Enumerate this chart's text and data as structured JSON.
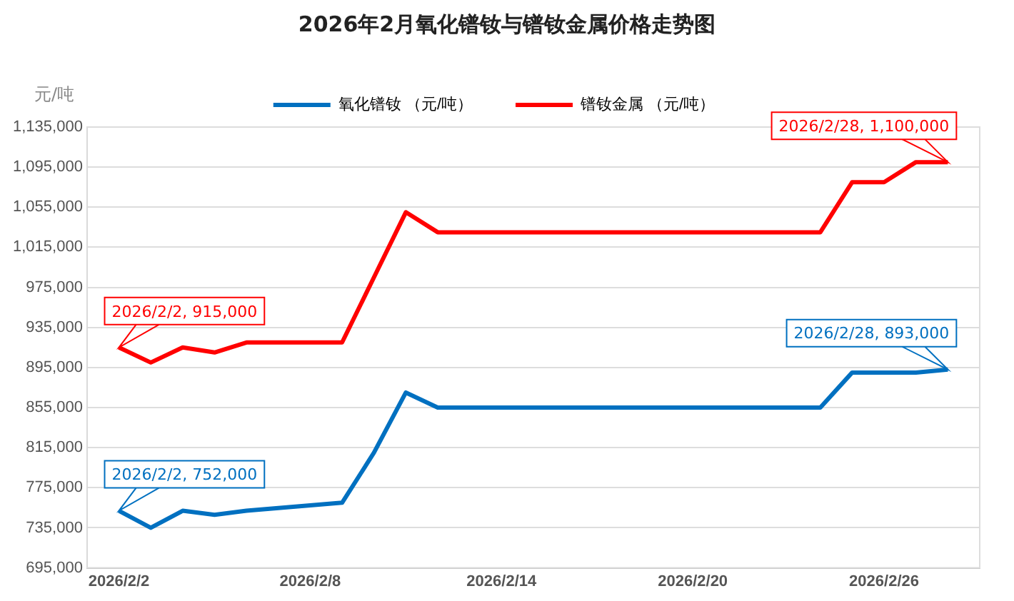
{
  "chart_data": {
    "type": "line",
    "title": "2026年2月氧化镨钕与镨钕金属价格走势图",
    "ylabel": "元/吨",
    "x": [
      "2026-02-02",
      "2026-02-03",
      "2026-02-04",
      "2026-02-05",
      "2026-02-06",
      "2026-02-09",
      "2026-02-10",
      "2026-02-11",
      "2026-02-12",
      "2026-02-13",
      "2026-02-24",
      "2026-02-25",
      "2026-02-26",
      "2026-02-27",
      "2026-02-28"
    ],
    "series": [
      {
        "name": "氧化镨钕 （元/吨）",
        "color": "#0070c0",
        "values": [
          752000,
          735000,
          752000,
          748000,
          752000,
          760000,
          810000,
          870000,
          855000,
          855000,
          855000,
          890000,
          890000,
          890000,
          893000
        ]
      },
      {
        "name": "镨钕金属 （元/吨）",
        "color": "#ff0000",
        "values": [
          915000,
          900000,
          915000,
          910000,
          920000,
          920000,
          985000,
          1050000,
          1030000,
          1030000,
          1030000,
          1080000,
          1080000,
          1100000,
          1100000
        ]
      }
    ],
    "xlim": [
      "2026-02-01",
      "2026-03-01"
    ],
    "xticks": [
      {
        "value": "2026-02-02",
        "label": "2026/2/2"
      },
      {
        "value": "2026-02-08",
        "label": "2026/2/8"
      },
      {
        "value": "2026-02-14",
        "label": "2026/2/14"
      },
      {
        "value": "2026-02-20",
        "label": "2026/2/20"
      },
      {
        "value": "2026-02-26",
        "label": "2026/2/26"
      }
    ],
    "ylim": [
      695000,
      1135000
    ],
    "yticks": [
      {
        "value": 695000,
        "label": "695,000"
      },
      {
        "value": 735000,
        "label": "735,000"
      },
      {
        "value": 775000,
        "label": "775,000"
      },
      {
        "value": 815000,
        "label": "815,000"
      },
      {
        "value": 855000,
        "label": "855,000"
      },
      {
        "value": 895000,
        "label": "895,000"
      },
      {
        "value": 935000,
        "label": "935,000"
      },
      {
        "value": 975000,
        "label": "975,000"
      },
      {
        "value": 1015000,
        "label": "1,015,000"
      },
      {
        "value": 1055000,
        "label": "1,055,000"
      },
      {
        "value": 1095000,
        "label": "1,095,000"
      },
      {
        "value": 1135000,
        "label": "1,135,000"
      }
    ],
    "annotations": [
      {
        "text": "2026/2/2, 752,000",
        "x": "2026-02-02",
        "y": 752000
      },
      {
        "text": "2026/2/2, 915,000",
        "x": "2026-02-02",
        "y": 915000
      },
      {
        "text": "2026/2/28, 893,000",
        "x": "2026-02-28",
        "y": 893000
      },
      {
        "text": "2026/2/28, 1,100,000",
        "x": "2026-02-28",
        "y": 1100000
      }
    ],
    "grid": "y",
    "legend": "top",
    "marker": "none",
    "line_style": "solid"
  }
}
